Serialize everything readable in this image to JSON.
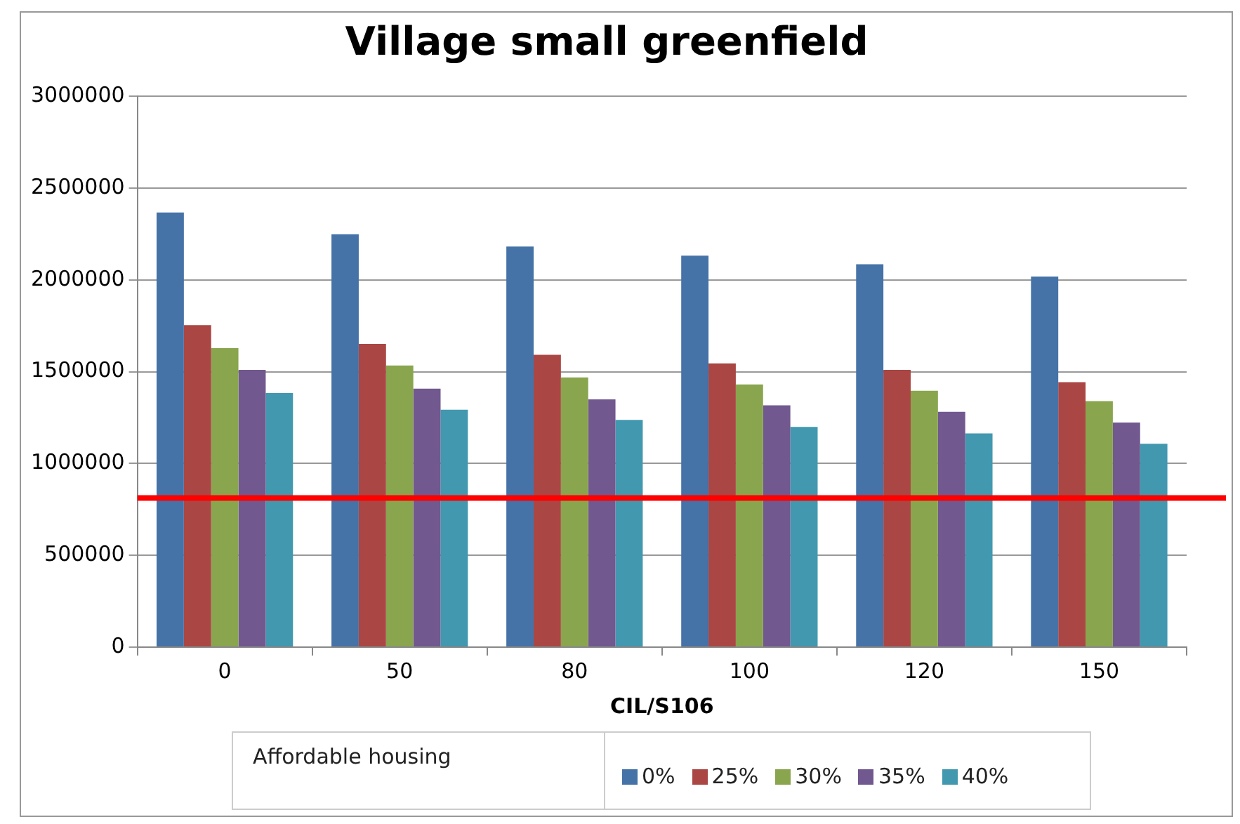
{
  "chart_data": {
    "type": "bar",
    "title": "Village small greenfield",
    "xlabel": "CIL/S106",
    "legend_title": "Affordable housing",
    "categories": [
      "0",
      "50",
      "80",
      "100",
      "120",
      "150"
    ],
    "series": [
      {
        "name": "0%",
        "color": "#4572a7",
        "values": [
          2367000,
          2249000,
          2182000,
          2132000,
          2085000,
          2018000
        ]
      },
      {
        "name": "25%",
        "color": "#aa4643",
        "values": [
          1754000,
          1651000,
          1592000,
          1545000,
          1510000,
          1443000
        ]
      },
      {
        "name": "30%",
        "color": "#89a54e",
        "values": [
          1628000,
          1534000,
          1469000,
          1431000,
          1396000,
          1340000
        ]
      },
      {
        "name": "35%",
        "color": "#71588f",
        "values": [
          1510000,
          1408000,
          1349000,
          1317000,
          1282000,
          1223000
        ]
      },
      {
        "name": "40%",
        "color": "#4198af",
        "values": [
          1384000,
          1293000,
          1238000,
          1199000,
          1164000,
          1108000
        ]
      }
    ],
    "ylim": [
      0,
      3000000
    ],
    "yticks": [
      0,
      500000,
      1000000,
      1500000,
      2000000,
      2500000,
      3000000
    ],
    "ref_lines": [
      {
        "axis": "y",
        "value": 812000,
        "color": "#ff0000"
      }
    ],
    "grid": "y",
    "legend": "bottom"
  }
}
